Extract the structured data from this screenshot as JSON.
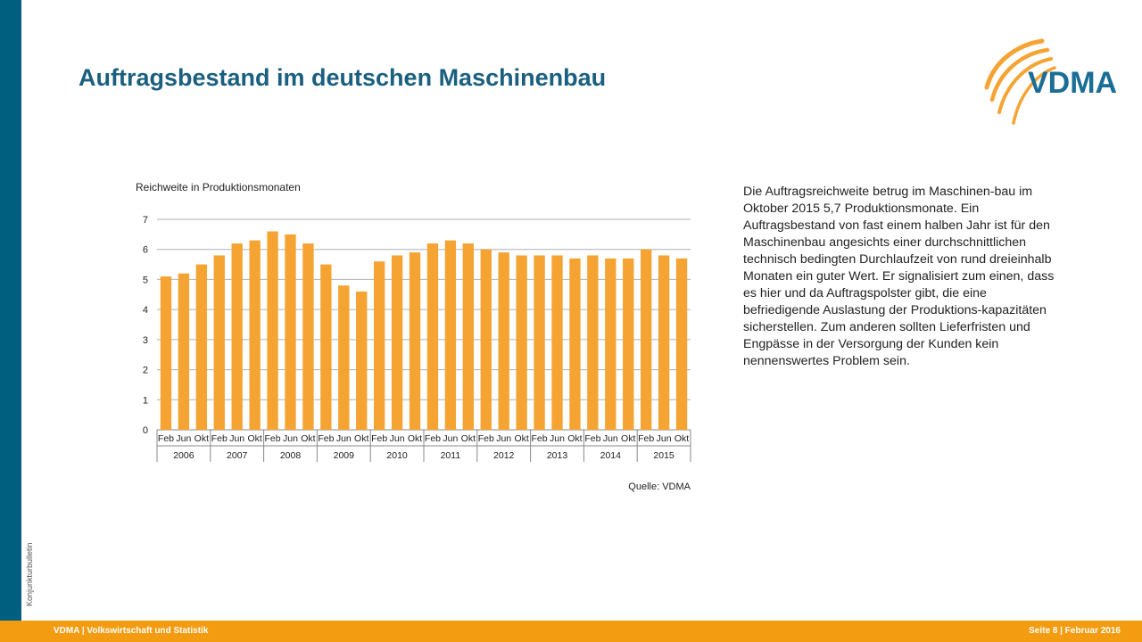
{
  "page": {
    "title": "Auftragsbestand im deutschen Maschinenbau",
    "side_label": "Konjunkturbulletin",
    "description": "Die Auftragsreichweite betrug im Maschinen-bau im Oktober 2015 5,7 Produktionsmonate. Ein Auftragsbestand von fast einem halben Jahr ist für den Maschinenbau angesichts einer durchschnittlichen technisch bedingten Durchlaufzeit von rund dreieinhalb Monaten ein guter Wert. Er signalisiert zum einen, dass es hier und da Auftragspolster gibt, die eine befriedigende Auslastung der Produktions-kapazitäten sicherstellen. Zum anderen sollten Lieferfristen und Engpässe in der Versorgung der Kunden kein nennenswertes Problem sein.",
    "logo_text": "VDMA"
  },
  "footer": {
    "brand": "VDMA",
    "section": "| Volkswirtschaft und Statistik",
    "page_info": "Seite 8 | Februar 2016"
  },
  "colors": {
    "bar": "#f5a433",
    "accent": "#005f7f",
    "title": "#1a5f7f",
    "footer": "#f39c12"
  },
  "chart_data": {
    "type": "bar",
    "title": "Reichweite in Produktionsmonaten",
    "source": "Quelle: VDMA",
    "ylim": [
      0,
      7
    ],
    "yticks": [
      0,
      1,
      2,
      3,
      4,
      5,
      6,
      7
    ],
    "grid": true,
    "categories": [
      "Feb",
      "Jun",
      "Okt",
      "Feb",
      "Jun",
      "Okt",
      "Feb",
      "Jun",
      "Okt",
      "Feb",
      "Jun",
      "Okt",
      "Feb",
      "Jun",
      "Okt",
      "Feb",
      "Jun",
      "Okt",
      "Feb",
      "Jun",
      "Okt",
      "Feb",
      "Jun",
      "Okt",
      "Feb",
      "Jun",
      "Okt",
      "Feb",
      "Jun",
      "Okt"
    ],
    "years": [
      "2006",
      "2007",
      "2008",
      "2009",
      "2010",
      "2011",
      "2012",
      "2013",
      "2014",
      "2015"
    ],
    "values": [
      5.1,
      5.2,
      5.5,
      5.8,
      6.2,
      6.3,
      6.6,
      6.5,
      6.2,
      5.5,
      4.8,
      4.6,
      5.6,
      5.8,
      5.9,
      6.2,
      6.3,
      6.2,
      6.0,
      5.9,
      5.8,
      5.8,
      5.8,
      5.7,
      5.8,
      5.7,
      5.7,
      6.0,
      5.8,
      5.7
    ]
  }
}
